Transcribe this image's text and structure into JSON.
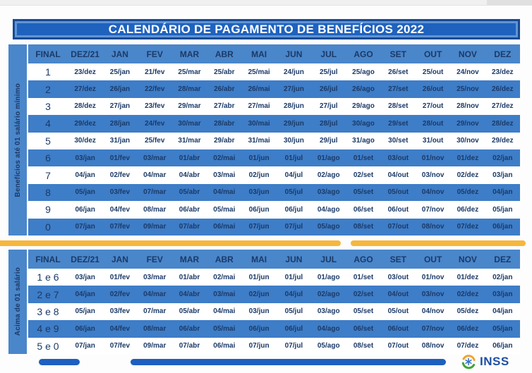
{
  "title": "CALENDÁRIO DE PAGAMENTO DE BENEFÍCIOS 2022",
  "columns": [
    "FINAL",
    "DEZ/21",
    "JAN",
    "FEV",
    "MAR",
    "ABR",
    "MAI",
    "JUN",
    "JUL",
    "AGO",
    "SET",
    "OUT",
    "NOV",
    "DEZ"
  ],
  "table1": {
    "side_label": "Benefícios até 01 salário mínimo",
    "rows": [
      {
        "final": "1",
        "dates": [
          "23/dez",
          "25/jan",
          "21/fev",
          "25/mar",
          "25/abr",
          "25/mai",
          "24/jun",
          "25/jul",
          "25/ago",
          "26/set",
          "25/out",
          "24/nov",
          "23/dez"
        ]
      },
      {
        "final": "2",
        "dates": [
          "27/dez",
          "26/jan",
          "22/fev",
          "28/mar",
          "26/abr",
          "26/mai",
          "27/jun",
          "26/jul",
          "26/ago",
          "27/set",
          "26/out",
          "25/nov",
          "26/dez"
        ]
      },
      {
        "final": "3",
        "dates": [
          "28/dez",
          "27/jan",
          "23/fev",
          "29/mar",
          "27/abr",
          "27/mai",
          "28/jun",
          "27/jul",
          "29/ago",
          "28/set",
          "27/out",
          "28/nov",
          "27/dez"
        ]
      },
      {
        "final": "4",
        "dates": [
          "29/dez",
          "28/jan",
          "24/fev",
          "30/mar",
          "28/abr",
          "30/mai",
          "29/jun",
          "28/jul",
          "30/ago",
          "29/set",
          "28/out",
          "29/nov",
          "28/dez"
        ]
      },
      {
        "final": "5",
        "dates": [
          "30/dez",
          "31/jan",
          "25/fev",
          "31/mar",
          "29/abr",
          "31/mai",
          "30/jun",
          "29/jul",
          "31/ago",
          "30/set",
          "31/out",
          "30/nov",
          "29/dez"
        ]
      },
      {
        "final": "6",
        "dates": [
          "03/jan",
          "01/fev",
          "03/mar",
          "01/abr",
          "02/mai",
          "01/jun",
          "01/jul",
          "01/ago",
          "01/set",
          "03/out",
          "01/nov",
          "01/dez",
          "02/jan"
        ]
      },
      {
        "final": "7",
        "dates": [
          "04/jan",
          "02/fev",
          "04/mar",
          "04/abr",
          "03/mai",
          "02/jun",
          "04/jul",
          "02/ago",
          "02/set",
          "04/out",
          "03/nov",
          "02/dez",
          "03/jan"
        ]
      },
      {
        "final": "8",
        "dates": [
          "05/jan",
          "03/fev",
          "07/mar",
          "05/abr",
          "04/mai",
          "03/jun",
          "05/jul",
          "03/ago",
          "05/set",
          "05/out",
          "04/nov",
          "05/dez",
          "04/jan"
        ]
      },
      {
        "final": "9",
        "dates": [
          "06/jan",
          "04/fev",
          "08/mar",
          "06/abr",
          "05/mai",
          "06/jun",
          "06/jul",
          "04/ago",
          "06/set",
          "06/out",
          "07/nov",
          "06/dez",
          "05/jan"
        ]
      },
      {
        "final": "0",
        "dates": [
          "07/jan",
          "07/fev",
          "09/mar",
          "07/abr",
          "06/mai",
          "07/jun",
          "07/jul",
          "05/ago",
          "08/set",
          "07/out",
          "08/nov",
          "07/dez",
          "06/jan"
        ]
      }
    ]
  },
  "table2": {
    "side_label": "Acima de 01 salário",
    "rows": [
      {
        "final": "1 e 6",
        "dates": [
          "03/jan",
          "01/fev",
          "03/mar",
          "01/abr",
          "02/mai",
          "01/jun",
          "01/jul",
          "01/ago",
          "01/set",
          "03/out",
          "01/nov",
          "01/dez",
          "02/jan"
        ]
      },
      {
        "final": "2 e 7",
        "dates": [
          "04/jan",
          "02/fev",
          "04/mar",
          "04/abr",
          "03/mai",
          "02/jun",
          "04/jul",
          "02/ago",
          "02/set",
          "04/out",
          "03/nov",
          "02/dez",
          "03/jan"
        ]
      },
      {
        "final": "3 e 8",
        "dates": [
          "05/jan",
          "03/fev",
          "07/mar",
          "05/abr",
          "04/mai",
          "03/jun",
          "05/jul",
          "03/ago",
          "05/set",
          "05/out",
          "04/nov",
          "05/dez",
          "04/jan"
        ]
      },
      {
        "final": "4 e 9",
        "dates": [
          "06/jan",
          "04/fev",
          "08/mar",
          "06/abr",
          "05/mai",
          "06/jun",
          "06/jul",
          "04/ago",
          "06/set",
          "06/out",
          "07/nov",
          "06/dez",
          "05/jan"
        ]
      },
      {
        "final": "5 e 0",
        "dates": [
          "07/jan",
          "07/fev",
          "09/mar",
          "07/abr",
          "06/mai",
          "07/jun",
          "07/jul",
          "05/ago",
          "08/set",
          "07/out",
          "08/nov",
          "07/dez",
          "06/jan"
        ]
      }
    ]
  },
  "footer": {
    "logo_text": "INSS"
  },
  "colors": {
    "banner_blue": "#1f62be",
    "banner_border_dark": "#174a94",
    "banner_border_light": "#6094d4",
    "header_blue": "#4a86ca",
    "row_blue": "#3e7dc7",
    "sidebar_blue": "#4a86ca",
    "navy": "#1b3a68",
    "yellow": "#f6b73c",
    "footer_blue": "#1d60bf",
    "logo_green": "#3fa437",
    "logo_orange": "#f0a22e",
    "logo_blue": "#2f6fc4",
    "inss_text": "#1d4fa3"
  }
}
